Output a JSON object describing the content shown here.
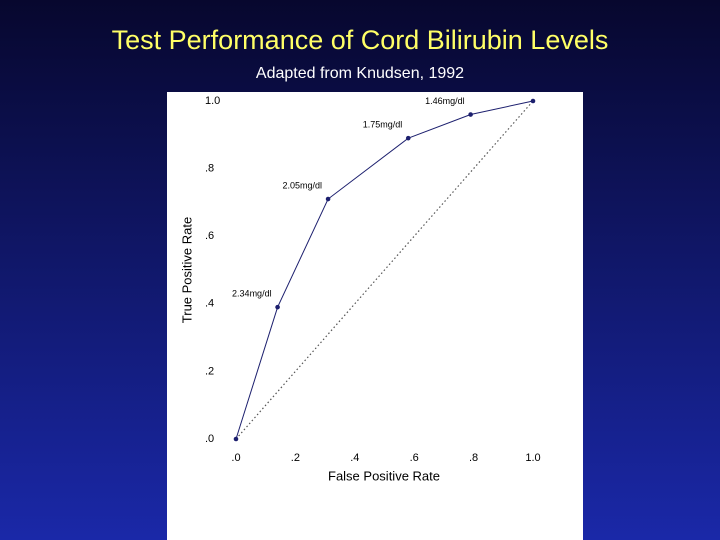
{
  "chart_data": {
    "type": "line",
    "title": "Test Performance of Cord Bilirubin Levels",
    "subtitle": "Adapted from Knudsen, 1992",
    "x_label": "False Positive Rate",
    "y_label": "True Positive Rate",
    "x": [
      0,
      0.14,
      0.31,
      0.58,
      0.79,
      1.0
    ],
    "values": [
      0,
      0.39,
      0.71,
      0.89,
      0.96,
      1.0
    ],
    "point_labels": [
      null,
      "2.34mg/dl",
      "2.05mg/dl",
      "1.75mg/dl",
      "1.46mg/dl",
      null
    ],
    "color": "#1c1f6e",
    "xlim": [
      0,
      1
    ],
    "ylim": [
      0,
      1
    ],
    "xticks": [
      {
        "value": 0,
        "label": ".0"
      },
      {
        "value": 0.2,
        "label": ".2"
      },
      {
        "value": 0.4,
        "label": ".4"
      },
      {
        "value": 0.6,
        "label": ".6"
      },
      {
        "value": 0.8,
        "label": ".8"
      },
      {
        "value": 1.0,
        "label": "1.0"
      }
    ],
    "yticks": [
      {
        "value": 0,
        "label": ".0"
      },
      {
        "value": 0.2,
        "label": ".2"
      },
      {
        "value": 0.4,
        "label": ".4"
      },
      {
        "value": 0.6,
        "label": ".6"
      },
      {
        "value": 0.8,
        "label": ".8"
      },
      {
        "value": 1.0,
        "label": "1.0"
      }
    ],
    "diagonal": true
  }
}
